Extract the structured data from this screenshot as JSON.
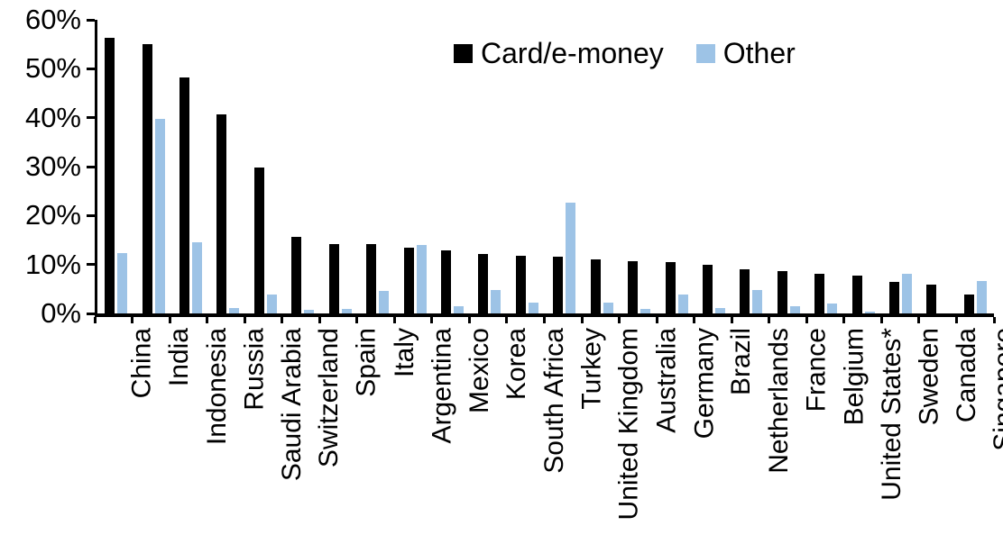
{
  "chart_data": {
    "type": "bar",
    "title": "",
    "xlabel": "",
    "ylabel": "",
    "ylim": [
      0,
      60
    ],
    "y_tick_step": 10,
    "y_tick_labels": [
      "0%",
      "10%",
      "20%",
      "30%",
      "40%",
      "50%",
      "60%"
    ],
    "grid": false,
    "legend_position": "top-center",
    "categories": [
      "China",
      "India",
      "Indonesia",
      "Russia",
      "Saudi Arabia",
      "Switzerland",
      "Spain",
      "Italy",
      "Argentina",
      "Mexico",
      "Korea",
      "South Africa",
      "Turkey",
      "United Kingdom",
      "Australia",
      "Germany",
      "Brazil",
      "Netherlands",
      "France",
      "Belgium",
      "United States*",
      "Sweden",
      "Canada",
      "Singapore"
    ],
    "series": [
      {
        "name": "Card/e-money",
        "color": "#000000",
        "values": [
          56.4,
          55.1,
          48.2,
          40.6,
          29.8,
          15.6,
          14.2,
          14.1,
          13.4,
          12.9,
          12.2,
          11.7,
          11.6,
          11.0,
          10.7,
          10.5,
          9.9,
          9.1,
          8.6,
          8.1,
          7.8,
          6.5,
          5.9,
          3.8
        ]
      },
      {
        "name": "Other",
        "color": "#9DC3E6",
        "values": [
          12.3,
          39.7,
          14.5,
          1.1,
          3.9,
          0.8,
          1.0,
          4.6,
          13.9,
          1.4,
          4.7,
          2.3,
          22.6,
          2.3,
          1.0,
          3.9,
          1.1,
          4.8,
          1.5,
          2.0,
          0.3,
          8.1,
          0,
          6.7
        ]
      }
    ]
  },
  "legend": {
    "card_label": "Card/e-money",
    "other_label": "Other"
  }
}
